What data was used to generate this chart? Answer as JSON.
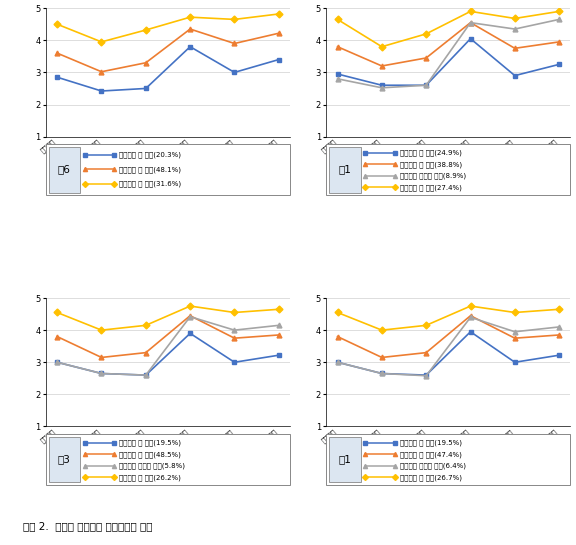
{
  "x_labels": [
    "수업태도",
    "수업흥미",
    "학습전략",
    "교우관계",
    "자아존중감",
    "진로성숙"
  ],
  "panels": [
    {
      "label": "촉6",
      "series": [
        {
          "name": "학교적응 하 집단(20.3%)",
          "color": "#4472c4",
          "marker": "s",
          "values": [
            2.85,
            2.42,
            2.5,
            3.8,
            3.0,
            3.4
          ]
        },
        {
          "name": "학교적응 중 집단(48.1%)",
          "color": "#ed7d31",
          "marker": "^",
          "values": [
            3.6,
            3.02,
            3.3,
            4.35,
            3.9,
            4.22
          ]
        },
        {
          "name": "학교적응 상 집단(31.6%)",
          "color": "#ffc000",
          "marker": "D",
          "values": [
            4.5,
            3.95,
            4.32,
            4.72,
            4.65,
            4.82
          ]
        }
      ]
    },
    {
      "label": "숴1",
      "series": [
        {
          "name": "학교적응 하 집단(24.9%)",
          "color": "#4472c4",
          "marker": "s",
          "values": [
            2.95,
            2.6,
            2.6,
            4.05,
            2.9,
            3.25
          ]
        },
        {
          "name": "학교적응 중 집단(38.8%)",
          "color": "#ed7d31",
          "marker": "^",
          "values": [
            3.8,
            3.2,
            3.45,
            4.55,
            3.75,
            3.95
          ]
        },
        {
          "name": "학교적응 불균형 집단(8.9%)",
          "color": "#a5a5a5",
          "marker": "^",
          "values": [
            2.8,
            2.52,
            2.6,
            4.55,
            4.35,
            4.65
          ]
        },
        {
          "name": "학교적응 상 집단(27.4%)",
          "color": "#ffc000",
          "marker": "D",
          "values": [
            4.65,
            3.8,
            4.2,
            4.9,
            4.68,
            4.9
          ]
        }
      ]
    },
    {
      "label": "숴3",
      "series": [
        {
          "name": "학교적응 하 집단(19.5%)",
          "color": "#4472c4",
          "marker": "s",
          "values": [
            3.0,
            2.65,
            2.6,
            3.9,
            3.0,
            3.22
          ]
        },
        {
          "name": "학교적응 중 집단(48.5%)",
          "color": "#ed7d31",
          "marker": "^",
          "values": [
            3.8,
            3.15,
            3.3,
            4.45,
            3.75,
            3.85
          ]
        },
        {
          "name": "학교적응 불균형 집단(5.8%)",
          "color": "#a5a5a5",
          "marker": "^",
          "values": [
            3.0,
            2.65,
            2.6,
            4.42,
            4.0,
            4.15
          ]
        },
        {
          "name": "학교적응 상 집단(26.2%)",
          "color": "#ffc000",
          "marker": "D",
          "values": [
            4.55,
            4.0,
            4.15,
            4.75,
            4.55,
            4.65
          ]
        }
      ]
    },
    {
      "label": "고1",
      "series": [
        {
          "name": "학교적응 하 집단(19.5%)",
          "color": "#4472c4",
          "marker": "s",
          "values": [
            3.0,
            2.65,
            2.6,
            3.95,
            3.0,
            3.22
          ]
        },
        {
          "name": "학교적응 중 집단(47.4%)",
          "color": "#ed7d31",
          "marker": "^",
          "values": [
            3.8,
            3.15,
            3.3,
            4.45,
            3.75,
            3.85
          ]
        },
        {
          "name": "학교적응 불균형 집단(6.4%)",
          "color": "#a5a5a5",
          "marker": "^",
          "values": [
            3.0,
            2.65,
            2.58,
            4.4,
            3.95,
            4.1
          ]
        },
        {
          "name": "학교적응 상 집단(26.7%)",
          "color": "#ffc000",
          "marker": "D",
          "values": [
            4.55,
            4.0,
            4.15,
            4.75,
            4.55,
            4.65
          ]
        }
      ]
    }
  ],
  "ylim": [
    1,
    5
  ],
  "yticks": [
    1,
    2,
    3,
    4,
    5
  ],
  "figure_caption": "그림 2.  전환기 학교적응 잠재집단의 형태",
  "label_bg": "#dce6f1"
}
